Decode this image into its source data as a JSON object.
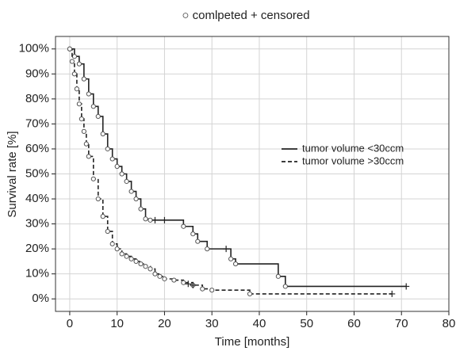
{
  "chart_data": {
    "type": "step",
    "title": "○ comlpeted + censored",
    "x_label": "Time [months]",
    "y_label": "Survival rate [%]",
    "xlim": [
      -3,
      80
    ],
    "ylim": [
      -5,
      105
    ],
    "xticks": [
      0,
      10,
      20,
      30,
      40,
      50,
      60,
      70,
      80
    ],
    "yticks": [
      {
        "value": 0,
        "label": "0%"
      },
      {
        "value": 10,
        "label": "10%"
      },
      {
        "value": 20,
        "label": "20%"
      },
      {
        "value": 30,
        "label": "30%"
      },
      {
        "value": 40,
        "label": "40%"
      },
      {
        "value": 50,
        "label": "50%"
      },
      {
        "value": 60,
        "label": "60%"
      },
      {
        "value": 70,
        "label": "70%"
      },
      {
        "value": 80,
        "label": "80%"
      },
      {
        "value": 90,
        "label": "90%"
      },
      {
        "value": 100,
        "label": "100%"
      }
    ],
    "grid": true,
    "legend_position": "right",
    "series": [
      {
        "name": "tumor volume <30ccm",
        "color": "#222222",
        "linestyle": "solid",
        "x": [
          0,
          1,
          2,
          3,
          4,
          5,
          6,
          7,
          8,
          9,
          10,
          11,
          12,
          13,
          14,
          15,
          16,
          17,
          24,
          26,
          27,
          29,
          34,
          35,
          44,
          45.5
        ],
        "values": [
          100,
          97,
          94,
          88,
          82,
          77,
          73,
          66,
          60,
          56,
          53,
          50,
          47,
          43,
          40,
          36,
          32,
          31.5,
          29,
          26,
          23,
          20,
          16,
          14,
          9,
          5
        ],
        "censored_x": [
          18,
          20,
          33,
          71
        ],
        "censored_values": [
          31.5,
          31.5,
          20,
          5
        ]
      },
      {
        "name": "tumor volume >30ccm",
        "color": "#222222",
        "linestyle": "dashed",
        "x": [
          0,
          0.5,
          1,
          1.5,
          2,
          2.5,
          3,
          3.5,
          4,
          5,
          6,
          7,
          8,
          9,
          10,
          11,
          12,
          13,
          14,
          15,
          16,
          17,
          18,
          19,
          20,
          22,
          24,
          26,
          28,
          30,
          38
        ],
        "values": [
          100,
          95,
          90,
          84,
          78,
          72,
          67,
          62,
          57,
          48,
          40,
          33,
          27,
          22,
          20,
          18,
          17,
          16,
          15,
          14,
          13,
          12,
          10,
          9,
          8,
          7.5,
          6.5,
          5.5,
          4,
          3.5,
          2
        ],
        "censored_x": [
          25,
          26,
          68
        ],
        "censored_values": [
          6,
          5.5,
          2
        ]
      }
    ]
  }
}
